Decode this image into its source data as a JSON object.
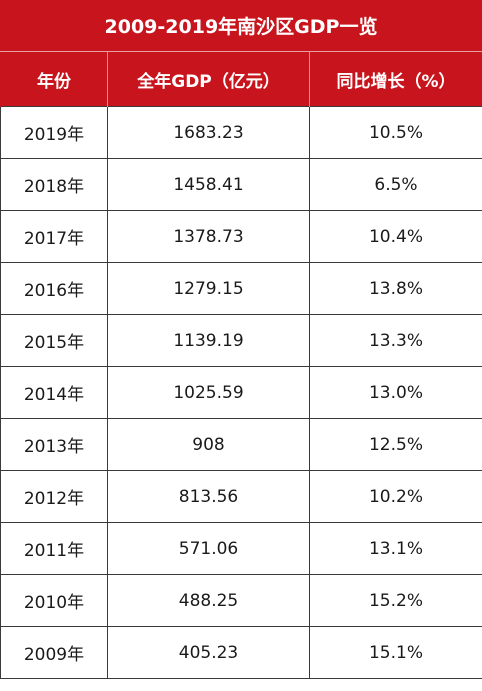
{
  "title": "2009-2019年南沙区GDP一览",
  "header": {
    "year": "年份",
    "gdp": "全年GDP（亿元）",
    "growth": "同比增长（%）"
  },
  "rows": [
    {
      "year": "2019年",
      "gdp": "1683.23",
      "growth": "10.5%"
    },
    {
      "year": "2018年",
      "gdp": "1458.41",
      "growth": "6.5%"
    },
    {
      "year": "2017年",
      "gdp": "1378.73",
      "growth": "10.4%"
    },
    {
      "year": "2016年",
      "gdp": "1279.15",
      "growth": "13.8%"
    },
    {
      "year": "2015年",
      "gdp": "1139.19",
      "growth": "13.3%"
    },
    {
      "year": "2014年",
      "gdp": "1025.59",
      "growth": "13.0%"
    },
    {
      "year": "2013年",
      "gdp": "908",
      "growth": "12.5%"
    },
    {
      "year": "2012年",
      "gdp": "813.56",
      "growth": "10.2%"
    },
    {
      "year": "2011年",
      "gdp": "571.06",
      "growth": "13.1%"
    },
    {
      "year": "2010年",
      "gdp": "488.25",
      "growth": "15.2%"
    },
    {
      "year": "2009年",
      "gdp": "405.23",
      "growth": "15.1%"
    }
  ],
  "colors": {
    "header_background": "#c8151d",
    "header_text": "#ffffff",
    "grid_line": "#3a3a3a"
  }
}
